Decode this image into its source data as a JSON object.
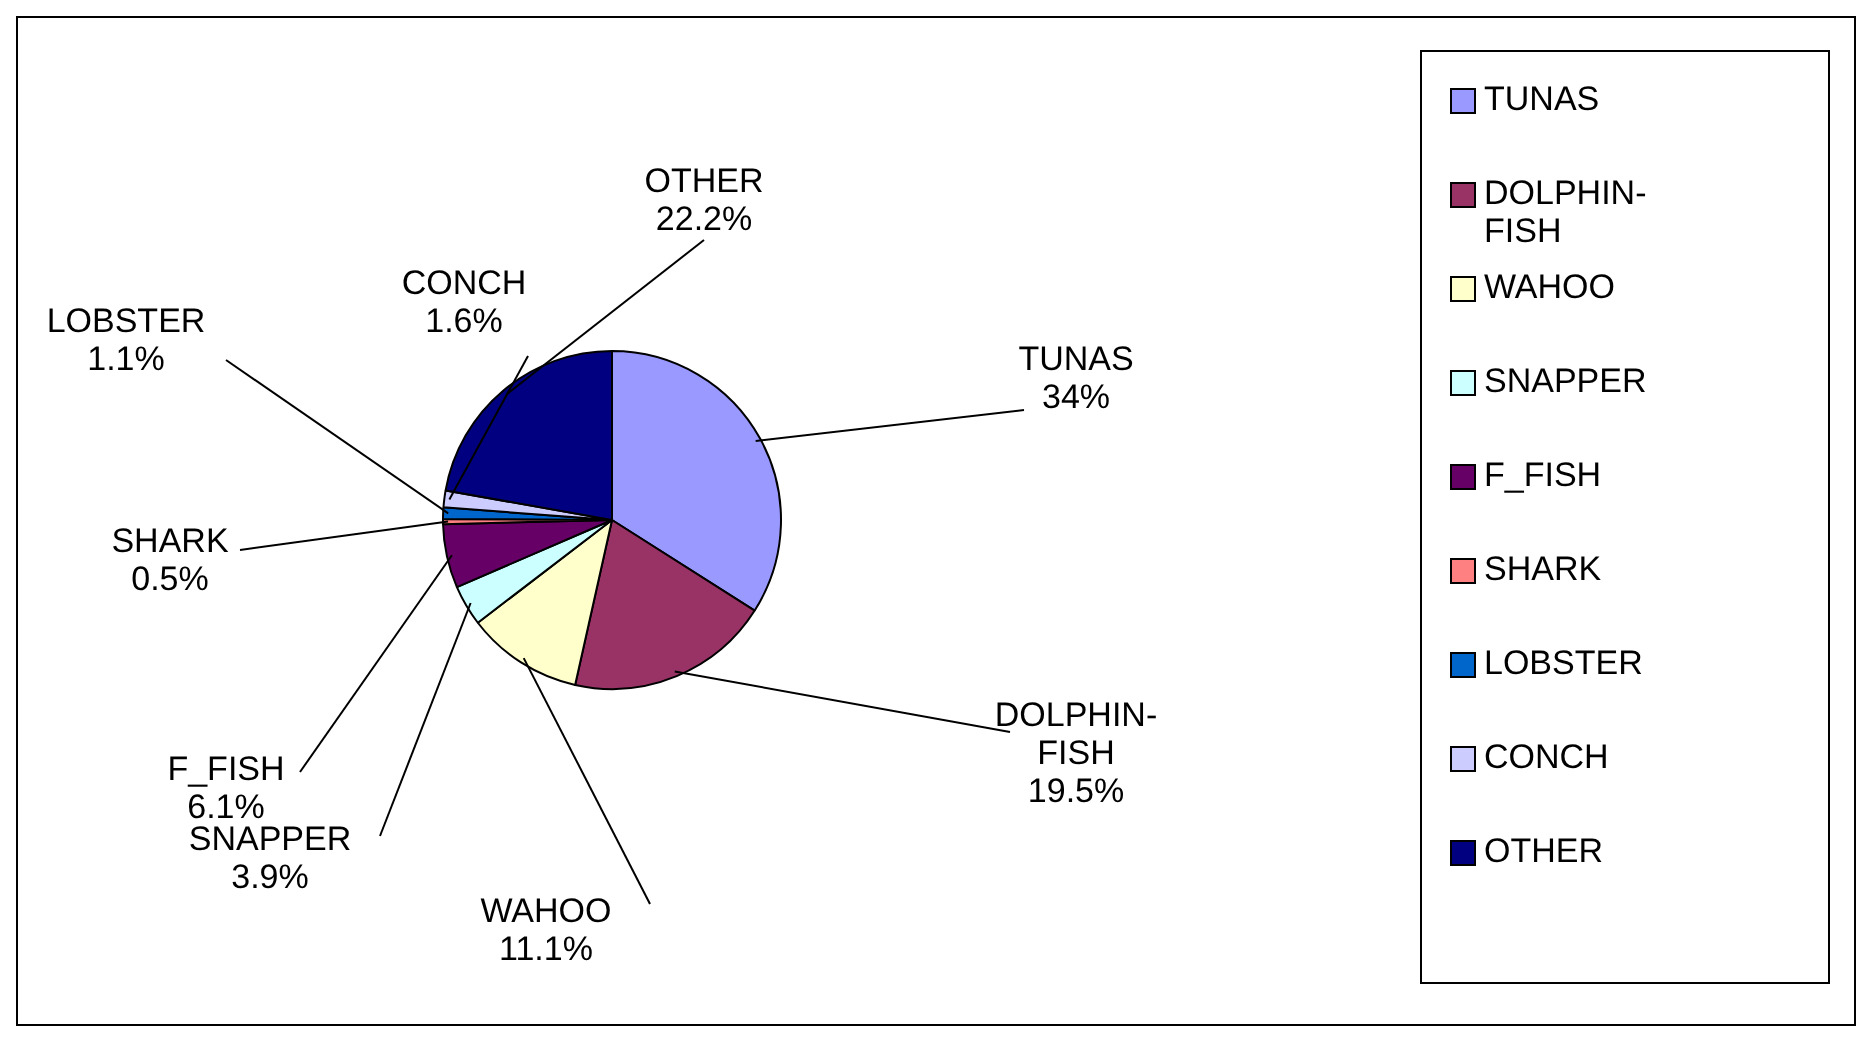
{
  "chart_data": {
    "type": "pie",
    "categories": [
      "TUNAS",
      "DOLPHIN-FISH",
      "WAHOO",
      "SNAPPER",
      "F_FISH",
      "SHARK",
      "LOBSTER",
      "CONCH",
      "OTHER"
    ],
    "values": [
      34,
      19.5,
      11.1,
      3.9,
      6.1,
      0.5,
      1.1,
      1.6,
      22.2
    ],
    "colors": [
      "#9999ff",
      "#993366",
      "#ffffcc",
      "#ccffff",
      "#660066",
      "#ff8080",
      "#0066cc",
      "#ccccff",
      "#000080"
    ],
    "value_labels": [
      "34%",
      "19.5%",
      "11.1%",
      "3.9%",
      "6.1%",
      "0.5%",
      "1.1%",
      "1.6%",
      "22.2%"
    ],
    "legend": "right"
  }
}
